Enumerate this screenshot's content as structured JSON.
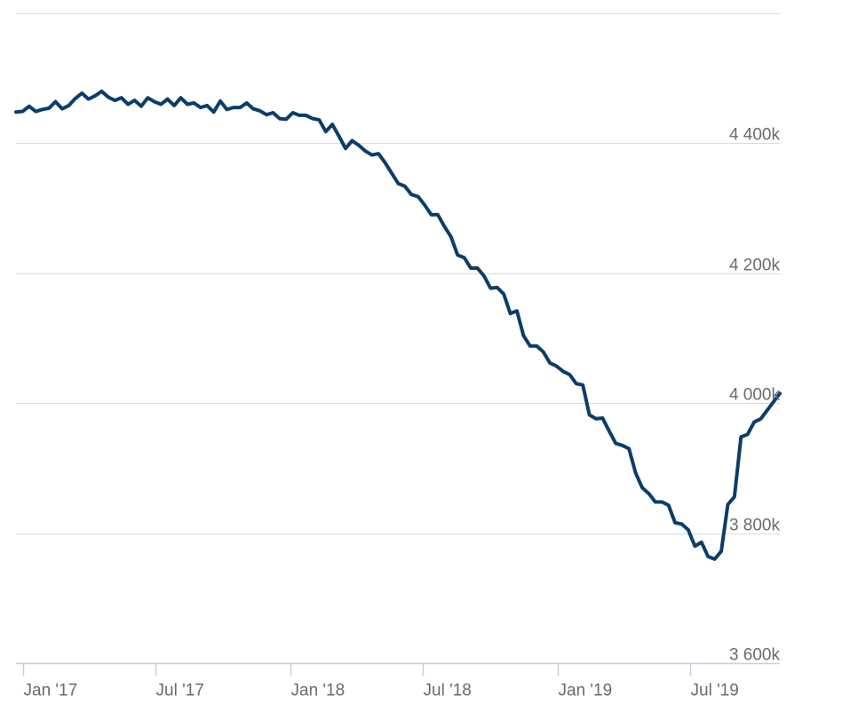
{
  "chart_data": {
    "type": "line",
    "title": "",
    "xlabel": "",
    "ylabel": "",
    "grid": true,
    "legend": "none",
    "line_color": "#0b3d6b",
    "grid_color": "#d6dce4",
    "axis_color": "#c3d0e0",
    "label_color": "#6b6b6b",
    "x_range": [
      "2016-12-22",
      "2019-10-31"
    ],
    "y_range": [
      3600,
      4600
    ],
    "y_ticks": [
      {
        "value": 3600,
        "label": "3 600k"
      },
      {
        "value": 3800,
        "label": "3 800k"
      },
      {
        "value": 4000,
        "label": "4 000k"
      },
      {
        "value": 4200,
        "label": "4 200k"
      },
      {
        "value": 4400,
        "label": "4 400k"
      },
      {
        "value": 4600,
        "label": ""
      }
    ],
    "x_ticks": [
      {
        "date": "2017-01-01",
        "label": "Jan '17"
      },
      {
        "date": "2017-07-01",
        "label": "Jul '17"
      },
      {
        "date": "2018-01-01",
        "label": "Jan '18"
      },
      {
        "date": "2018-07-01",
        "label": "Jul '18"
      },
      {
        "date": "2019-01-01",
        "label": "Jan '19"
      },
      {
        "date": "2019-07-01",
        "label": "Jul '19"
      }
    ],
    "series": [
      {
        "points": [
          [
            "2016-12-22",
            4448
          ],
          [
            "2016-12-31",
            4449
          ],
          [
            "2017-01-09",
            4457
          ],
          [
            "2017-01-18",
            4449
          ],
          [
            "2017-01-27",
            4452
          ],
          [
            "2017-02-05",
            4454
          ],
          [
            "2017-02-14",
            4464
          ],
          [
            "2017-02-23",
            4453
          ],
          [
            "2017-03-04",
            4458
          ],
          [
            "2017-03-13",
            4469
          ],
          [
            "2017-03-22",
            4477
          ],
          [
            "2017-03-31",
            4468
          ],
          [
            "2017-04-09",
            4473
          ],
          [
            "2017-04-18",
            4480
          ],
          [
            "2017-04-27",
            4471
          ],
          [
            "2017-05-06",
            4466
          ],
          [
            "2017-05-15",
            4470
          ],
          [
            "2017-05-24",
            4460
          ],
          [
            "2017-06-02",
            4466
          ],
          [
            "2017-06-11",
            4457
          ],
          [
            "2017-06-20",
            4470
          ],
          [
            "2017-06-29",
            4464
          ],
          [
            "2017-07-08",
            4460
          ],
          [
            "2017-07-17",
            4468
          ],
          [
            "2017-07-26",
            4458
          ],
          [
            "2017-08-04",
            4470
          ],
          [
            "2017-08-13",
            4460
          ],
          [
            "2017-08-22",
            4462
          ],
          [
            "2017-08-31",
            4455
          ],
          [
            "2017-09-09",
            4458
          ],
          [
            "2017-09-18",
            4448
          ],
          [
            "2017-09-27",
            4465
          ],
          [
            "2017-10-06",
            4452
          ],
          [
            "2017-10-15",
            4455
          ],
          [
            "2017-10-24",
            4455
          ],
          [
            "2017-11-02",
            4462
          ],
          [
            "2017-11-11",
            4453
          ],
          [
            "2017-11-20",
            4450
          ],
          [
            "2017-11-29",
            4444
          ],
          [
            "2017-12-08",
            4447
          ],
          [
            "2017-12-17",
            4438
          ],
          [
            "2017-12-26",
            4437
          ],
          [
            "2018-01-04",
            4447
          ],
          [
            "2018-01-13",
            4443
          ],
          [
            "2018-01-22",
            4443
          ],
          [
            "2018-01-31",
            4438
          ],
          [
            "2018-02-09",
            4436
          ],
          [
            "2018-02-18",
            4418
          ],
          [
            "2018-02-27",
            4429
          ],
          [
            "2018-03-08",
            4411
          ],
          [
            "2018-03-17",
            4392
          ],
          [
            "2018-03-26",
            4404
          ],
          [
            "2018-04-04",
            4397
          ],
          [
            "2018-04-13",
            4388
          ],
          [
            "2018-04-22",
            4382
          ],
          [
            "2018-05-01",
            4384
          ],
          [
            "2018-05-10",
            4370
          ],
          [
            "2018-05-19",
            4354
          ],
          [
            "2018-05-28",
            4338
          ],
          [
            "2018-06-06",
            4334
          ],
          [
            "2018-06-15",
            4321
          ],
          [
            "2018-06-24",
            4318
          ],
          [
            "2018-07-03",
            4305
          ],
          [
            "2018-07-12",
            4290
          ],
          [
            "2018-07-21",
            4290
          ],
          [
            "2018-07-30",
            4272
          ],
          [
            "2018-08-08",
            4256
          ],
          [
            "2018-08-17",
            4228
          ],
          [
            "2018-08-26",
            4224
          ],
          [
            "2018-09-04",
            4208
          ],
          [
            "2018-09-13",
            4208
          ],
          [
            "2018-09-22",
            4196
          ],
          [
            "2018-10-01",
            4177
          ],
          [
            "2018-10-10",
            4178
          ],
          [
            "2018-10-19",
            4168
          ],
          [
            "2018-10-28",
            4138
          ],
          [
            "2018-11-06",
            4142
          ],
          [
            "2018-11-15",
            4104
          ],
          [
            "2018-11-24",
            4088
          ],
          [
            "2018-12-03",
            4088
          ],
          [
            "2018-12-12",
            4079
          ],
          [
            "2018-12-21",
            4062
          ],
          [
            "2018-12-30",
            4057
          ],
          [
            "2019-01-08",
            4049
          ],
          [
            "2019-01-17",
            4044
          ],
          [
            "2019-01-26",
            4030
          ],
          [
            "2019-02-04",
            4028
          ],
          [
            "2019-02-13",
            3982
          ],
          [
            "2019-02-22",
            3976
          ],
          [
            "2019-03-03",
            3977
          ],
          [
            "2019-03-12",
            3957
          ],
          [
            "2019-03-21",
            3938
          ],
          [
            "2019-03-30",
            3935
          ],
          [
            "2019-04-08",
            3930
          ],
          [
            "2019-04-17",
            3893
          ],
          [
            "2019-04-26",
            3870
          ],
          [
            "2019-05-05",
            3861
          ],
          [
            "2019-05-14",
            3848
          ],
          [
            "2019-05-23",
            3848
          ],
          [
            "2019-06-01",
            3843
          ],
          [
            "2019-06-10",
            3816
          ],
          [
            "2019-06-19",
            3814
          ],
          [
            "2019-06-28",
            3805
          ],
          [
            "2019-07-07",
            3780
          ],
          [
            "2019-07-16",
            3786
          ],
          [
            "2019-07-25",
            3764
          ],
          [
            "2019-08-03",
            3760
          ],
          [
            "2019-08-12",
            3772
          ],
          [
            "2019-08-21",
            3844
          ],
          [
            "2019-08-30",
            3856
          ],
          [
            "2019-09-08",
            3948
          ],
          [
            "2019-09-17",
            3952
          ],
          [
            "2019-09-26",
            3971
          ],
          [
            "2019-10-05",
            3976
          ],
          [
            "2019-10-31",
            4015
          ]
        ]
      }
    ]
  }
}
